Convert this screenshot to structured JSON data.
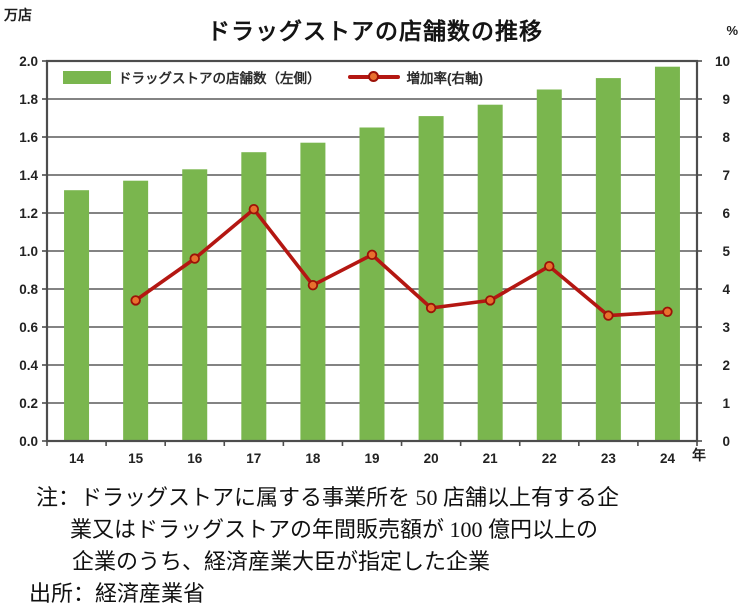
{
  "notes": {
    "line1": "注：ドラッグストアに属する事業所を 50 店舗以上有する企",
    "line2": "業又はドラッグストアの年間販売額が  100 億円以上の",
    "line3": "企業のうち、経済産業大臣が指定した企業",
    "source": "出所：経済産業省"
  },
  "colors": {
    "bar_green": "#7ab64e",
    "line_red": "#b41712",
    "marker_fill": "#e8702e",
    "marker_stroke": "#9c1208",
    "grid_gray": "#5a5a5a",
    "border_gray": "#4d4d4d",
    "tick_text": "#222222"
  },
  "chart_data": {
    "type": "bar+line",
    "title": "ドラッグストアの店舗数の推移",
    "categories": [
      "14",
      "15",
      "16",
      "17",
      "18",
      "19",
      "20",
      "21",
      "22",
      "23",
      "24"
    ],
    "series": [
      {
        "name": "ドラッグストアの店舗数（左側）",
        "type": "bar",
        "axis": "left",
        "values": [
          1.32,
          1.37,
          1.43,
          1.52,
          1.57,
          1.65,
          1.71,
          1.77,
          1.85,
          1.91,
          1.97
        ]
      },
      {
        "name": "増加率(右軸)",
        "type": "line",
        "axis": "right",
        "values": [
          null,
          3.7,
          4.8,
          6.1,
          4.1,
          4.9,
          3.5,
          3.7,
          4.6,
          3.3,
          3.4
        ]
      }
    ],
    "left_axis": {
      "unit": "万店",
      "min": 0,
      "max": 2.0,
      "step": 0.2
    },
    "right_axis": {
      "unit": "%",
      "min": 0,
      "max": 10,
      "step": 1
    },
    "x_axis": {
      "unit": "年"
    },
    "grid": "horizontal",
    "legend_position": "top-inside"
  }
}
